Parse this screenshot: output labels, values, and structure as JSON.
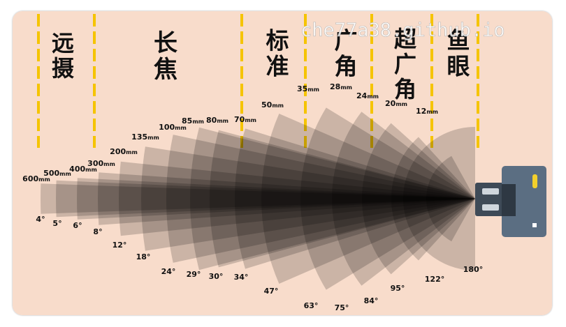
{
  "watermark": "che77a38.github.io",
  "categories": [
    {
      "name": "super-telephoto",
      "lines": [
        "远",
        "摄"
      ]
    },
    {
      "name": "telephoto",
      "lines": [
        "长",
        "焦"
      ]
    },
    {
      "name": "standard",
      "lines": [
        "标",
        "准"
      ]
    },
    {
      "name": "wide",
      "lines": [
        "广",
        "角"
      ]
    },
    {
      "name": "ultra-wide",
      "lines": [
        "超",
        "广",
        "角"
      ]
    },
    {
      "name": "fisheye",
      "lines": [
        "鱼",
        "眼"
      ]
    }
  ],
  "lenses": [
    {
      "focal": "600",
      "unit": "mm",
      "angle": "4°",
      "angle_deg": 4
    },
    {
      "focal": "500",
      "unit": "mm",
      "angle": "5°",
      "angle_deg": 5
    },
    {
      "focal": "400",
      "unit": "mm",
      "angle": "6°",
      "angle_deg": 6
    },
    {
      "focal": "300",
      "unit": "mm",
      "angle": "8°",
      "angle_deg": 8
    },
    {
      "focal": "200",
      "unit": "mm",
      "angle": "12°",
      "angle_deg": 12
    },
    {
      "focal": "135",
      "unit": "mm",
      "angle": "18°",
      "angle_deg": 18
    },
    {
      "focal": "100",
      "unit": "mm",
      "angle": "24°",
      "angle_deg": 24
    },
    {
      "focal": "85",
      "unit": "mm",
      "angle": "29°",
      "angle_deg": 29
    },
    {
      "focal": "80",
      "unit": "mm",
      "angle": "30°",
      "angle_deg": 30
    },
    {
      "focal": "70",
      "unit": "mm",
      "angle": "34°",
      "angle_deg": 34
    },
    {
      "focal": "50",
      "unit": "mm",
      "angle": "47°",
      "angle_deg": 47
    },
    {
      "focal": "35",
      "unit": "mm",
      "angle": "63°",
      "angle_deg": 63
    },
    {
      "focal": "28",
      "unit": "mm",
      "angle": "75°",
      "angle_deg": 75
    },
    {
      "focal": "24",
      "unit": "mm",
      "angle": "84°",
      "angle_deg": 84
    },
    {
      "focal": "20",
      "unit": "mm",
      "angle": "95°",
      "angle_deg": 95
    },
    {
      "focal": "12",
      "unit": "mm",
      "angle": "122°",
      "angle_deg": 122
    },
    {
      "focal": "",
      "unit": "",
      "angle": "180°",
      "angle_deg": 180
    }
  ],
  "colors": {
    "background": "#f8dccb",
    "divider": "#f5c400",
    "wedge": "#000000",
    "camera_body": "#5b6e82",
    "camera_lens": "#3e4a57",
    "camera_accent": "#f3d02c"
  },
  "camera_icon": "camera-icon"
}
